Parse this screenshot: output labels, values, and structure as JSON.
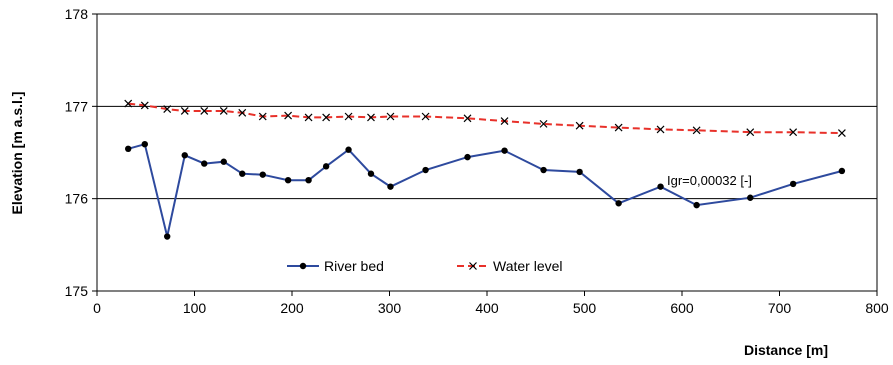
{
  "chart_data": {
    "type": "line",
    "xlabel": "Distance [m]",
    "ylabel": "Elevation [m a.s.l.]",
    "xlim": [
      0,
      800
    ],
    "ylim": [
      175,
      178
    ],
    "x_ticks": [
      0,
      100,
      200,
      300,
      400,
      500,
      600,
      700,
      800
    ],
    "y_ticks": [
      175,
      176,
      177,
      178
    ],
    "grid": "horizontal major gridlines",
    "legend_position": "bottom-left inside plot",
    "annotation": "Igr=0,00032 [-]",
    "series": [
      {
        "name": "River bed",
        "color": "#2e4a9e",
        "marker": "filled-circle",
        "points": [
          [
            32,
            176.54
          ],
          [
            49,
            176.59
          ],
          [
            72,
            175.59
          ],
          [
            90,
            176.47
          ],
          [
            110,
            176.38
          ],
          [
            130,
            176.4
          ],
          [
            149,
            176.27
          ],
          [
            170,
            176.26
          ],
          [
            196,
            176.2
          ],
          [
            217,
            176.2
          ],
          [
            235,
            176.35
          ],
          [
            258,
            176.53
          ],
          [
            281,
            176.27
          ],
          [
            301,
            176.13
          ],
          [
            337,
            176.31
          ],
          [
            380,
            176.45
          ],
          [
            418,
            176.52
          ],
          [
            458,
            176.31
          ],
          [
            495,
            176.29
          ],
          [
            535,
            175.95
          ],
          [
            578,
            176.13
          ],
          [
            615,
            175.93
          ],
          [
            670,
            176.01
          ],
          [
            714,
            176.16
          ],
          [
            764,
            176.3
          ]
        ]
      },
      {
        "name": "Water level",
        "color": "#e8312a",
        "marker": "x",
        "points": [
          [
            32,
            177.03
          ],
          [
            49,
            177.01
          ],
          [
            72,
            176.97
          ],
          [
            90,
            176.95
          ],
          [
            110,
            176.95
          ],
          [
            130,
            176.95
          ],
          [
            149,
            176.93
          ],
          [
            170,
            176.89
          ],
          [
            196,
            176.9
          ],
          [
            217,
            176.88
          ],
          [
            235,
            176.88
          ],
          [
            258,
            176.89
          ],
          [
            281,
            176.88
          ],
          [
            301,
            176.89
          ],
          [
            337,
            176.89
          ],
          [
            380,
            176.87
          ],
          [
            418,
            176.84
          ],
          [
            458,
            176.81
          ],
          [
            495,
            176.79
          ],
          [
            535,
            176.77
          ],
          [
            578,
            176.75
          ],
          [
            615,
            176.74
          ],
          [
            670,
            176.72
          ],
          [
            714,
            176.72
          ],
          [
            764,
            176.71
          ]
        ]
      }
    ]
  }
}
